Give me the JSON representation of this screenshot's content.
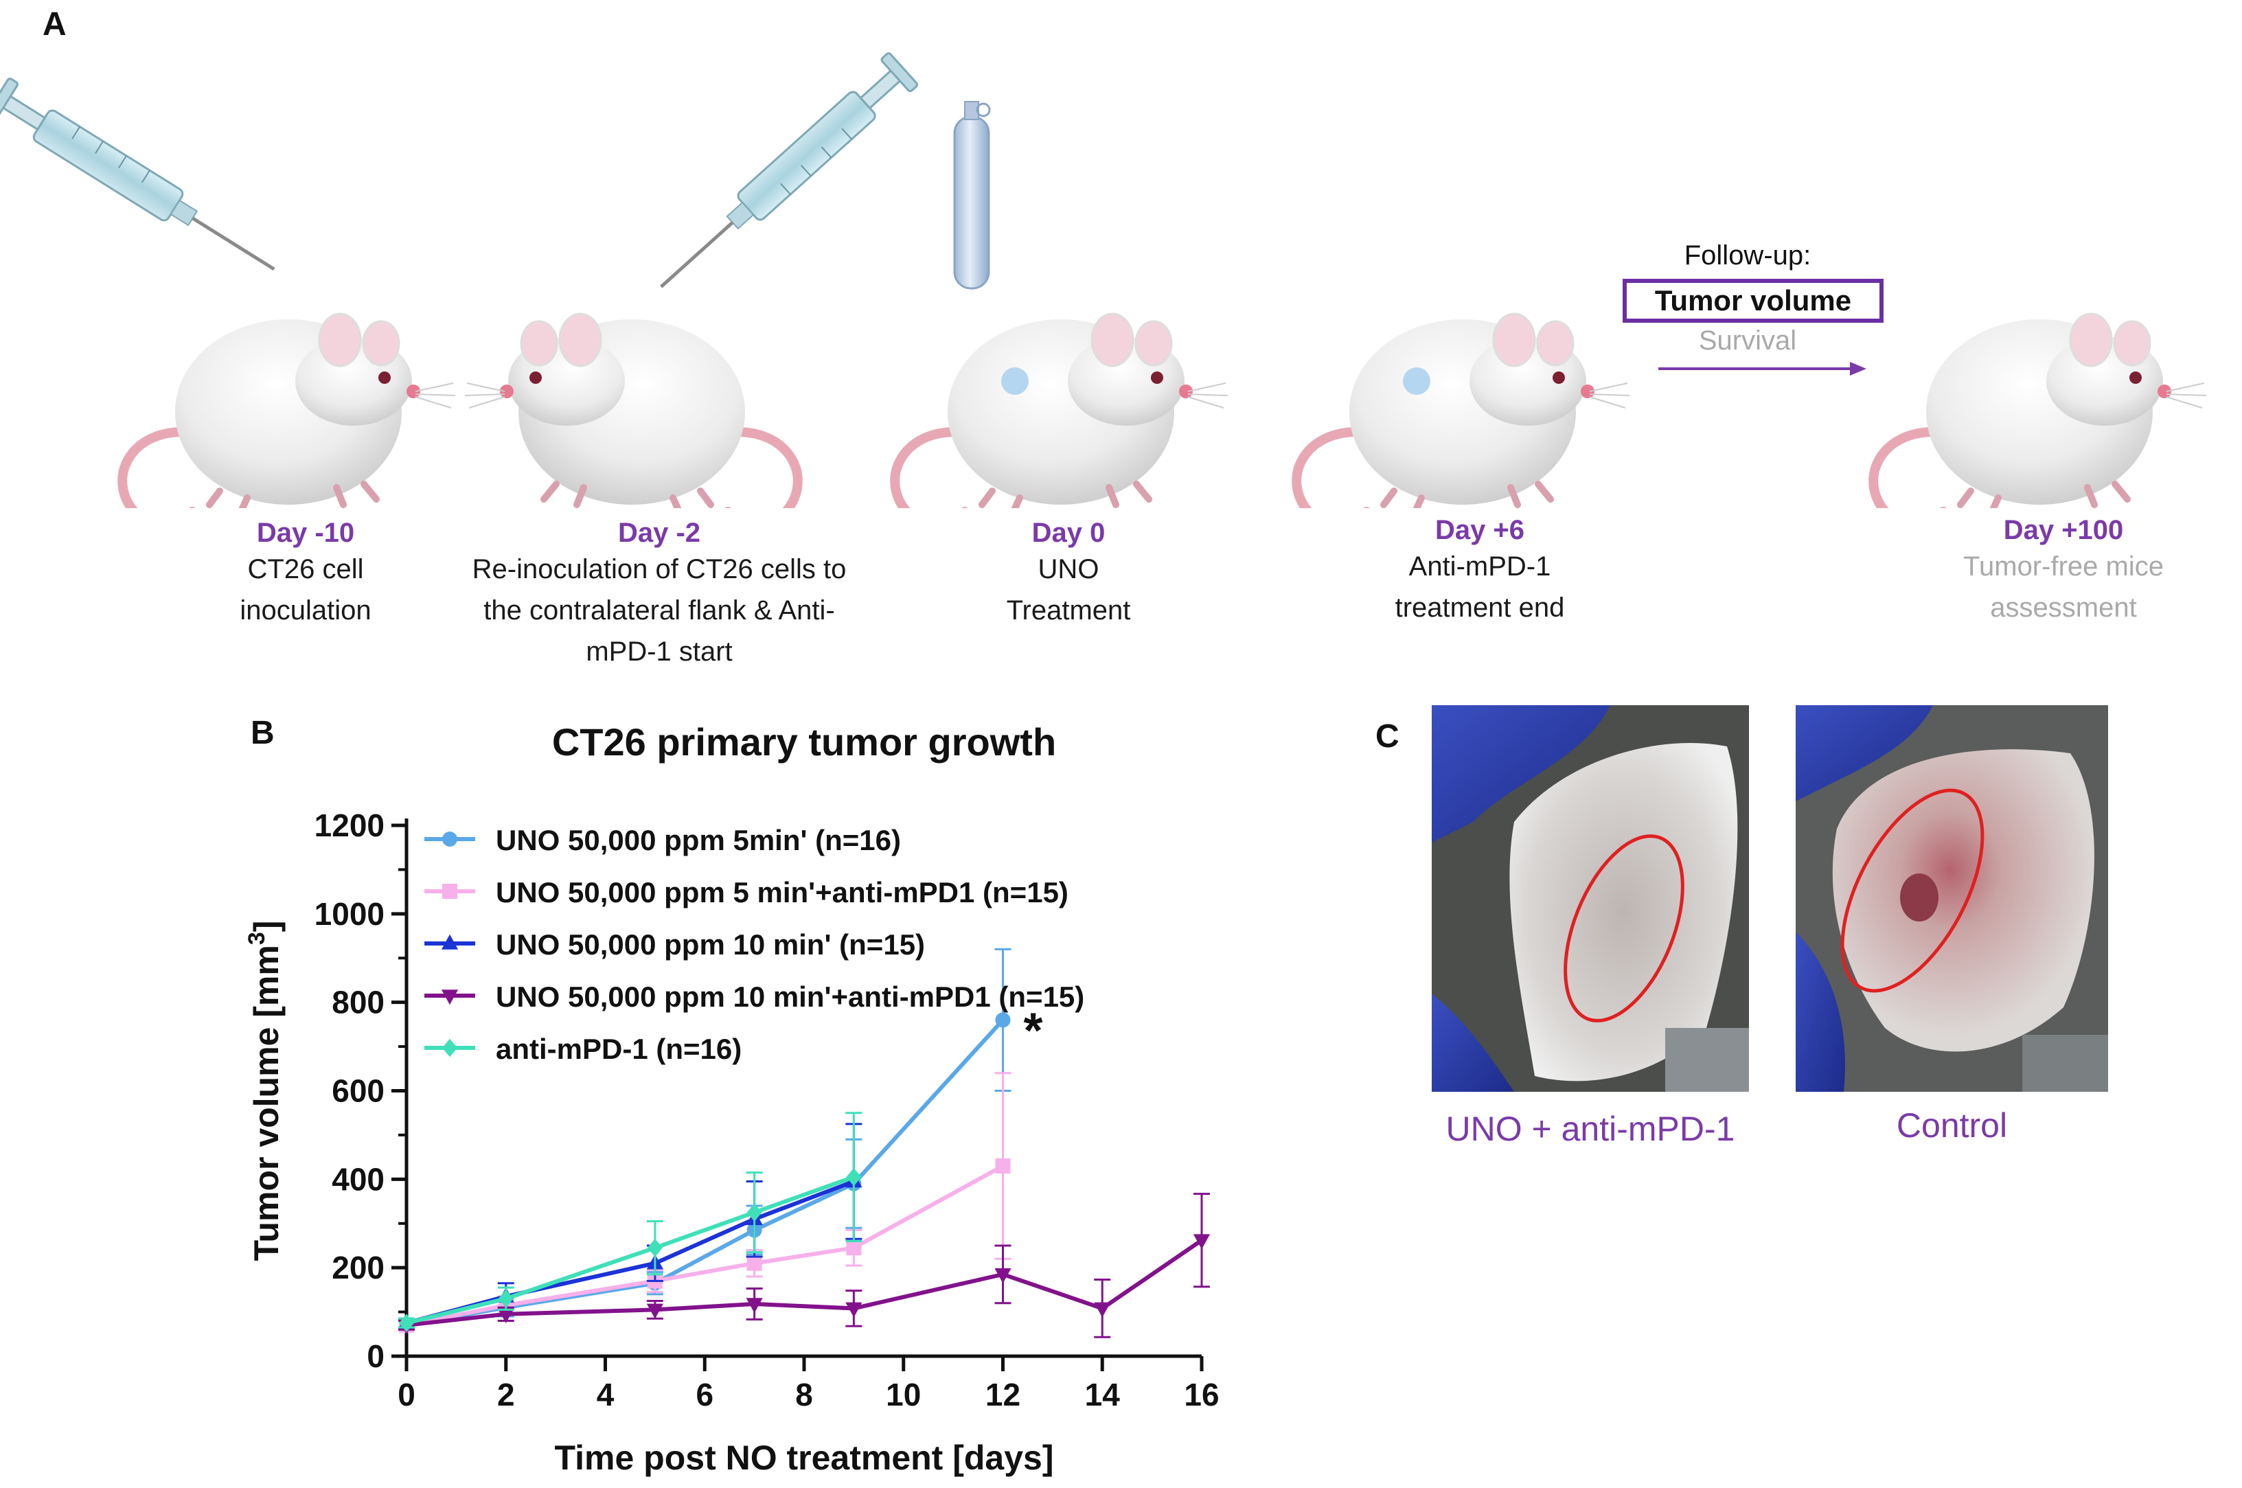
{
  "panel_labels": {
    "a": "A",
    "b": "B",
    "c": "C"
  },
  "timeline": [
    {
      "day": "Day -10",
      "desc": [
        "CT26 cell",
        "inoculation"
      ]
    },
    {
      "day": "Day -2",
      "desc": [
        "Re-inoculation of CT26 cells to",
        "the contralateral flank & Anti-",
        "mPD-1 start"
      ]
    },
    {
      "day": "Day 0",
      "desc": [
        "UNO",
        "Treatment"
      ]
    },
    {
      "day": "Day +6",
      "desc": [
        "Anti-mPD-1",
        "treatment end"
      ]
    },
    {
      "day": "Day +100",
      "desc": [
        "Tumor-free mice",
        "assessment"
      ]
    }
  ],
  "followup": {
    "label": "Follow-up:",
    "primary": "Tumor volume",
    "secondary": "Survival"
  },
  "photo_captions": [
    "UNO + anti-mPD-1",
    "Control"
  ],
  "colors": {
    "accent_purple": "#7a3aa8",
    "tumor_ring": "#e02020"
  },
  "chart_data": {
    "type": "line",
    "title": "CT26 primary tumor growth",
    "xlabel": "Time post NO treatment [days]",
    "ylabel": "Tumor volume [mm",
    "ylabel_sup": "3",
    "ylabel_end": "]",
    "xlim": [
      0,
      16
    ],
    "ylim": [
      0,
      1200
    ],
    "xticks": [
      0,
      2,
      4,
      6,
      8,
      10,
      12,
      14,
      16
    ],
    "yticks": [
      0,
      200,
      400,
      600,
      800,
      1000,
      1200
    ],
    "annotation": {
      "text": "*",
      "x": 12,
      "y": 760
    },
    "series": [
      {
        "name": "UNO 50,000 ppm 5min' (n=16)",
        "color": "#5aa8e8",
        "marker": "circle",
        "x": [
          0,
          2,
          5,
          7,
          9,
          12
        ],
        "y": [
          70,
          110,
          165,
          285,
          390,
          760
        ],
        "err": [
          10,
          20,
          25,
          55,
          100,
          160
        ]
      },
      {
        "name": "UNO 50,000 ppm 5 min'+anti-mPD1 (n=15)",
        "color": "#f7b0ea",
        "marker": "square",
        "x": [
          0,
          2,
          5,
          7,
          9,
          12
        ],
        "y": [
          70,
          115,
          170,
          210,
          245,
          430
        ],
        "err": [
          10,
          20,
          25,
          30,
          40,
          210
        ]
      },
      {
        "name": "UNO 50,000 ppm 10 min' (n=15)",
        "color": "#1c33d6",
        "marker": "triangle",
        "x": [
          0,
          2,
          5,
          7,
          9
        ],
        "y": [
          75,
          135,
          210,
          310,
          395
        ],
        "err": [
          10,
          30,
          40,
          85,
          130
        ]
      },
      {
        "name": "UNO 50,000 ppm 10 min'+anti-mPD1 (n=15)",
        "color": "#82128c",
        "marker": "triangle-down",
        "x": [
          0,
          2,
          5,
          7,
          9,
          12,
          14,
          16
        ],
        "y": [
          70,
          95,
          105,
          118,
          108,
          185,
          108,
          262
        ],
        "err": [
          10,
          15,
          20,
          35,
          40,
          65,
          65,
          105
        ]
      },
      {
        "name": "anti-mPD-1 (n=16)",
        "color": "#3fe0b8",
        "marker": "diamond",
        "x": [
          0,
          2,
          5,
          7,
          9
        ],
        "y": [
          75,
          130,
          245,
          325,
          405
        ],
        "err": [
          10,
          25,
          60,
          90,
          145
        ]
      }
    ]
  }
}
